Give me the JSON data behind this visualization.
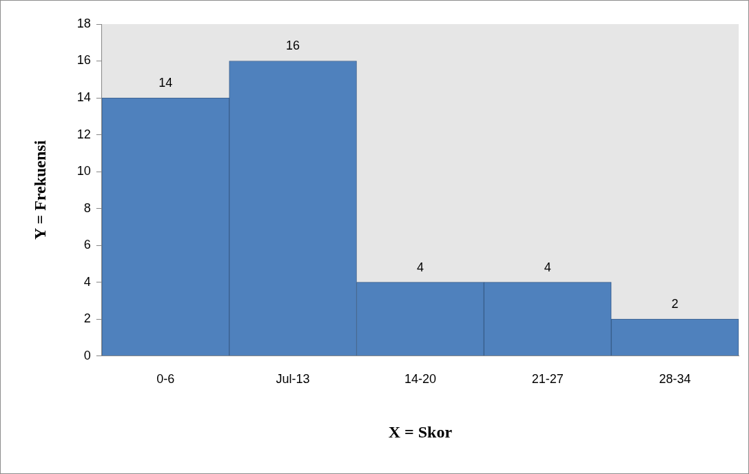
{
  "chart_data": {
    "type": "bar",
    "xlabel": "X = Skor",
    "ylabel": "Y = Frekuensi",
    "categories": [
      "0-6",
      "Jul-13",
      "14-20",
      "21-27",
      "28-34"
    ],
    "values": [
      14,
      16,
      4,
      4,
      2
    ],
    "color": "#4f81bd",
    "ylim": [
      0,
      18
    ],
    "yticks": [
      0,
      2,
      4,
      6,
      8,
      10,
      12,
      14,
      16,
      18
    ],
    "grid": false,
    "data_labels": true
  }
}
